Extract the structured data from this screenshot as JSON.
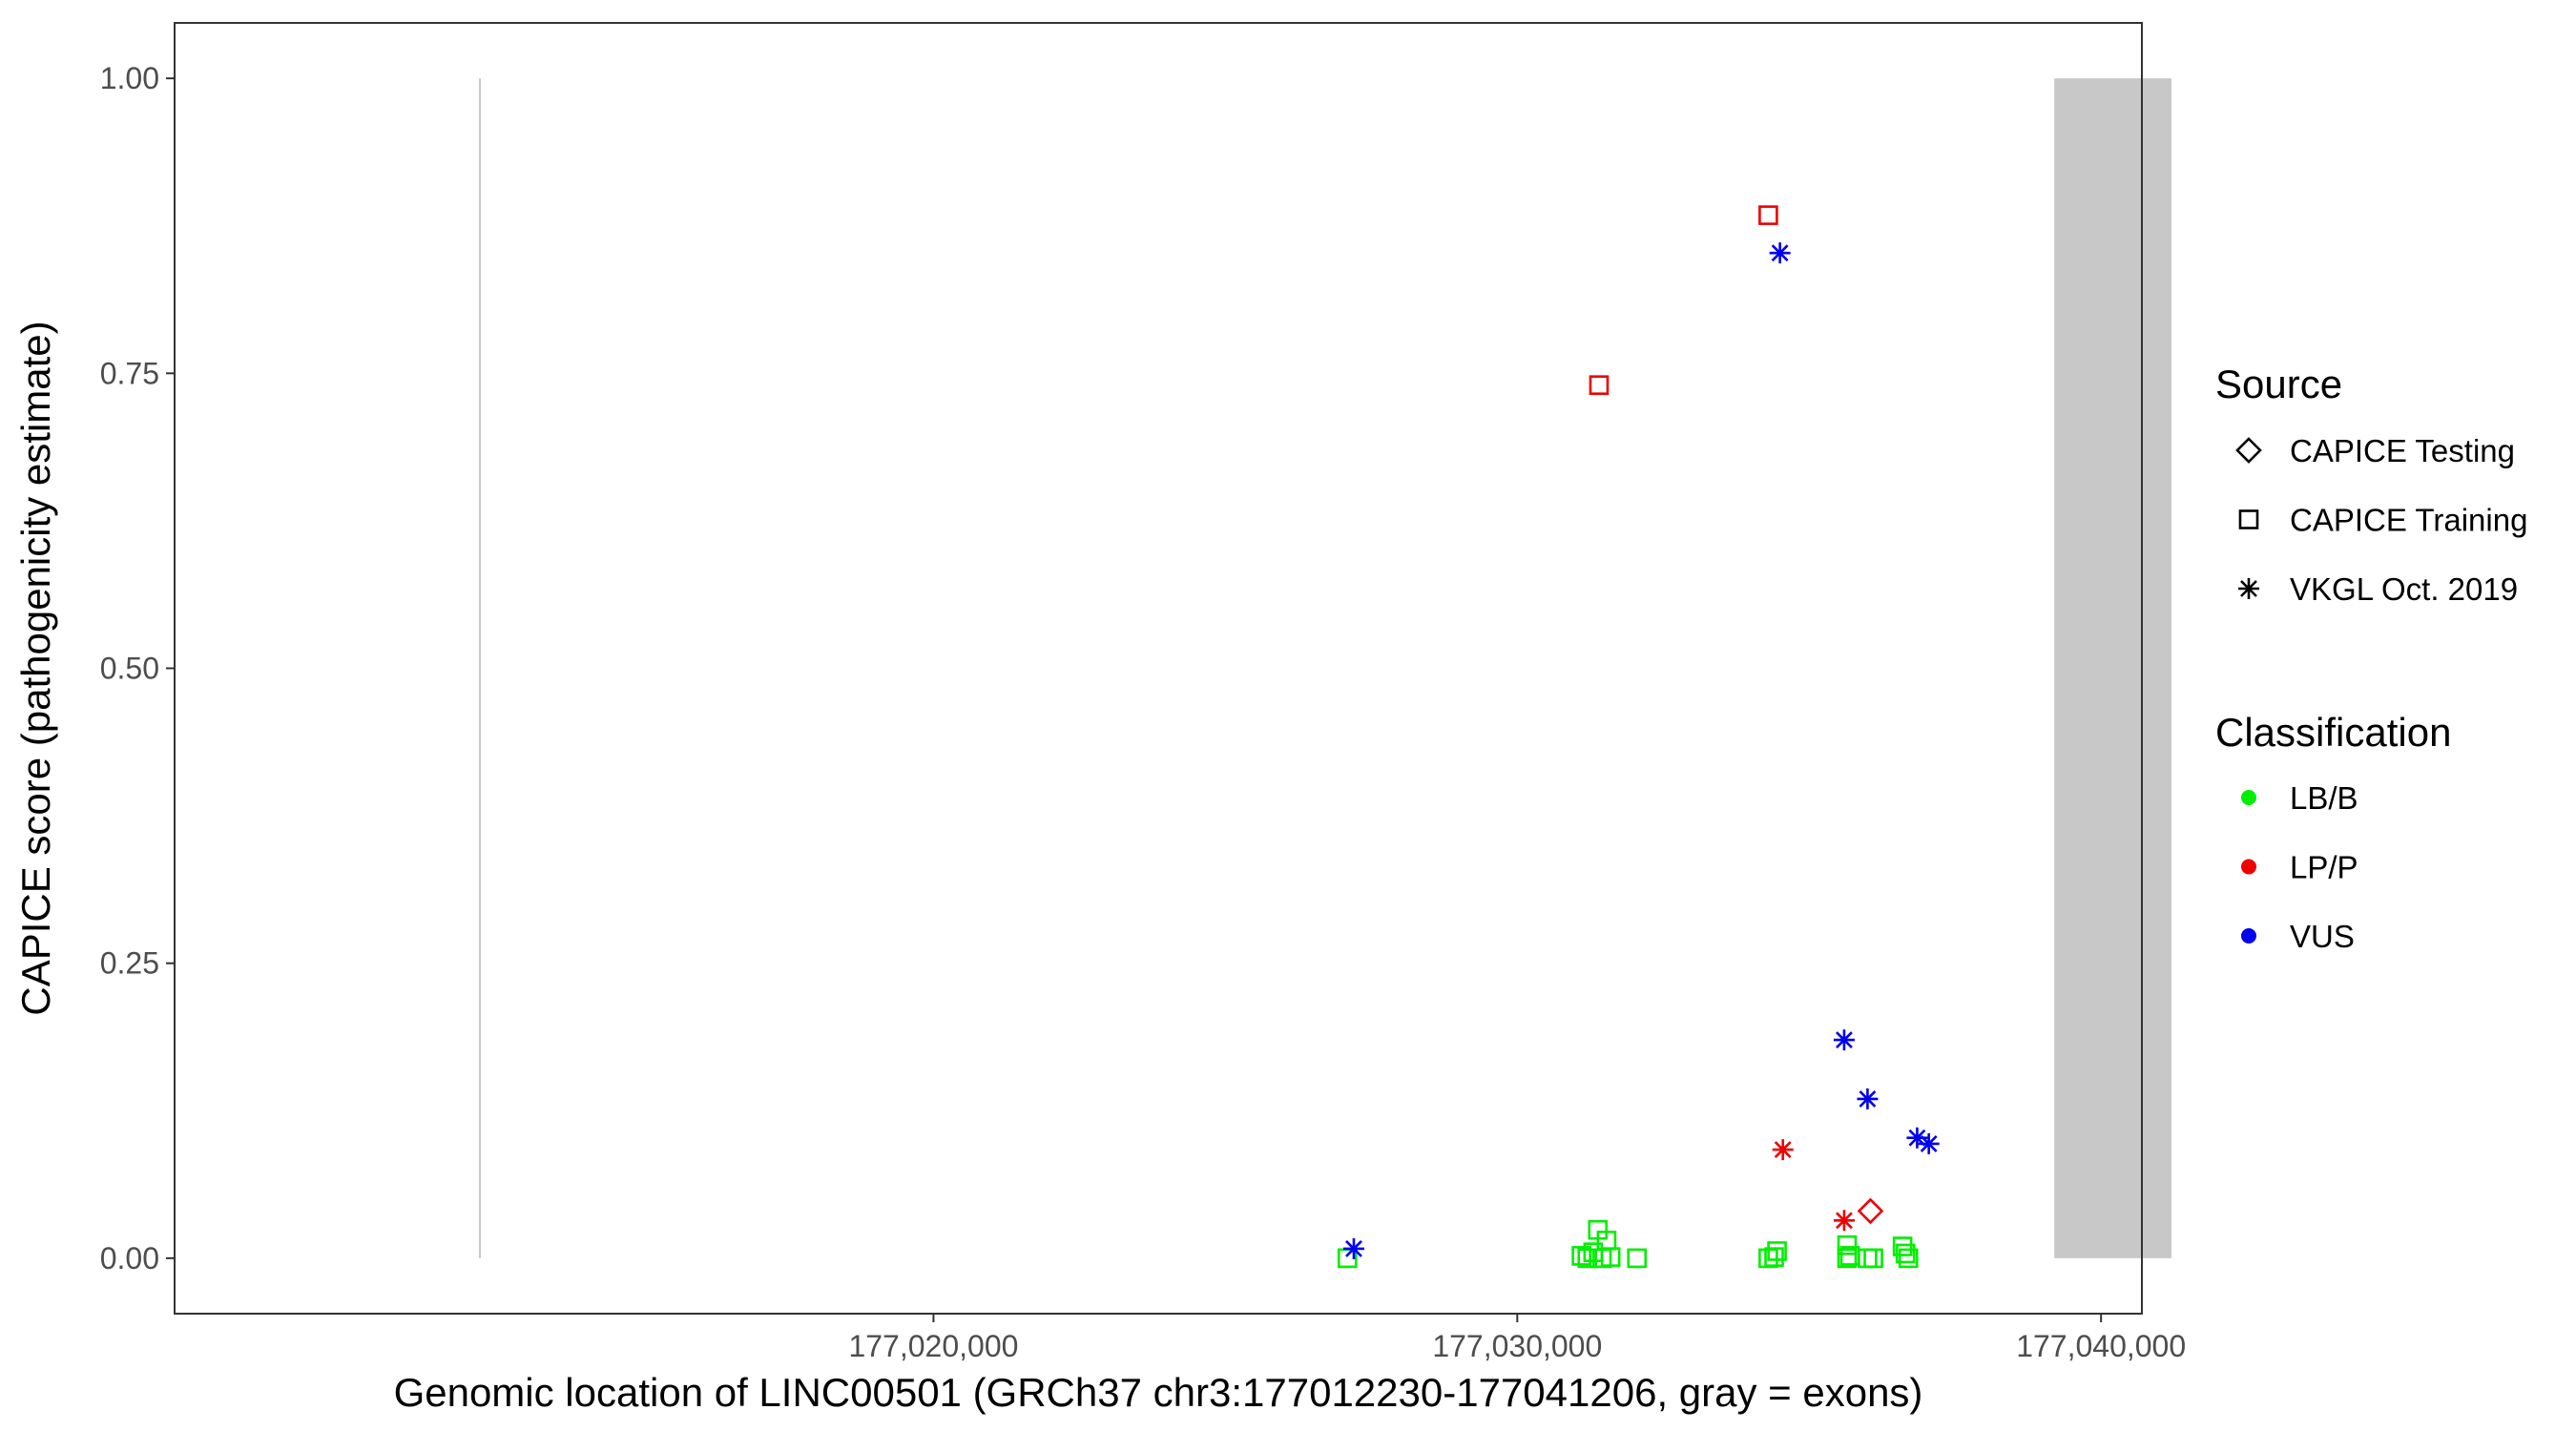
{
  "chart_data": {
    "type": "scatter",
    "title": "",
    "xlabel": "Genomic location of LINC00501 (GRCh37 chr3:177012230-177041206, gray = exons)",
    "ylabel": "CAPICE score (pathogenicity estimate)",
    "xlim": [
      177007000,
      177040700
    ],
    "ylim": [
      -0.047,
      1.047
    ],
    "x_ticks": [
      177020000,
      177030000,
      177040000
    ],
    "x_tick_labels": [
      "177,020,000",
      "177,030,000",
      "177,040,000"
    ],
    "y_ticks": [
      0,
      0.25,
      0.5,
      0.75,
      1.0
    ],
    "y_tick_labels": [
      "0.00",
      "0.25",
      "0.50",
      "0.75",
      "1.00"
    ],
    "grid": false,
    "gene_span": [
      177012230,
      177041206
    ],
    "exons": [
      {
        "start": 177012230,
        "end": 177012230
      },
      {
        "start": 177039200,
        "end": 177041206
      }
    ],
    "exon_color": "#c8c8c8",
    "legend": {
      "position": "right",
      "source_title": "Source",
      "source_items": [
        {
          "label": "CAPICE Testing",
          "shape": "diamond"
        },
        {
          "label": "CAPICE Training",
          "shape": "square"
        },
        {
          "label": "VKGL Oct. 2019",
          "shape": "asterisk"
        }
      ],
      "class_title": "Classification",
      "class_items": [
        {
          "label": "LB/B",
          "color": "#00ee00"
        },
        {
          "label": "LP/P",
          "color": "#ee0000"
        },
        {
          "label": "VUS",
          "color": "#0000ee"
        }
      ]
    },
    "points": [
      {
        "x": 177027090,
        "y": 0.0,
        "source": "CAPICE Training",
        "class": "LB/B"
      },
      {
        "x": 177027200,
        "y": 0.008,
        "source": "VKGL Oct. 2019",
        "class": "VUS"
      },
      {
        "x": 177031100,
        "y": 0.002,
        "source": "CAPICE Training",
        "class": "LB/B"
      },
      {
        "x": 177031200,
        "y": 0.0,
        "source": "CAPICE Training",
        "class": "LB/B"
      },
      {
        "x": 177031300,
        "y": 0.005,
        "source": "CAPICE Training",
        "class": "LB/B"
      },
      {
        "x": 177031380,
        "y": 0.024,
        "source": "CAPICE Training",
        "class": "LB/B"
      },
      {
        "x": 177031400,
        "y": 0.74,
        "source": "CAPICE Training",
        "class": "LP/P"
      },
      {
        "x": 177031450,
        "y": 0.0,
        "source": "CAPICE Training",
        "class": "LB/B"
      },
      {
        "x": 177031530,
        "y": 0.015,
        "source": "CAPICE Training",
        "class": "LB/B"
      },
      {
        "x": 177031600,
        "y": 0.001,
        "source": "CAPICE Training",
        "class": "LB/B"
      },
      {
        "x": 177032050,
        "y": 0.0,
        "source": "CAPICE Training",
        "class": "LB/B"
      },
      {
        "x": 177034300,
        "y": 0.884,
        "source": "CAPICE Training",
        "class": "LP/P"
      },
      {
        "x": 177034300,
        "y": 0.0,
        "source": "CAPICE Training",
        "class": "LB/B"
      },
      {
        "x": 177034400,
        "y": 0.001,
        "source": "CAPICE Training",
        "class": "LB/B"
      },
      {
        "x": 177034450,
        "y": 0.006,
        "source": "CAPICE Training",
        "class": "LB/B"
      },
      {
        "x": 177034500,
        "y": 0.852,
        "source": "VKGL Oct. 2019",
        "class": "VUS"
      },
      {
        "x": 177034550,
        "y": 0.092,
        "source": "VKGL Oct. 2019",
        "class": "LP/P"
      },
      {
        "x": 177035600,
        "y": 0.185,
        "source": "VKGL Oct. 2019",
        "class": "VUS"
      },
      {
        "x": 177035600,
        "y": 0.032,
        "source": "VKGL Oct. 2019",
        "class": "LP/P"
      },
      {
        "x": 177035650,
        "y": 0.011,
        "source": "CAPICE Training",
        "class": "LB/B"
      },
      {
        "x": 177035650,
        "y": 0.0,
        "source": "CAPICE Training",
        "class": "LB/B"
      },
      {
        "x": 177035700,
        "y": 0.002,
        "source": "CAPICE Training",
        "class": "LB/B"
      },
      {
        "x": 177036000,
        "y": 0.135,
        "source": "VKGL Oct. 2019",
        "class": "VUS"
      },
      {
        "x": 177036000,
        "y": 0.0,
        "source": "CAPICE Training",
        "class": "LB/B"
      },
      {
        "x": 177036050,
        "y": 0.04,
        "source": "CAPICE Testing",
        "class": "LP/P"
      },
      {
        "x": 177036100,
        "y": 0.0,
        "source": "CAPICE Training",
        "class": "LB/B"
      },
      {
        "x": 177036600,
        "y": 0.01,
        "source": "CAPICE Training",
        "class": "LB/B"
      },
      {
        "x": 177036650,
        "y": 0.004,
        "source": "CAPICE Training",
        "class": "LB/B"
      },
      {
        "x": 177036700,
        "y": 0.0,
        "source": "CAPICE Training",
        "class": "LB/B"
      },
      {
        "x": 177036850,
        "y": 0.102,
        "source": "VKGL Oct. 2019",
        "class": "VUS"
      },
      {
        "x": 177037050,
        "y": 0.097,
        "source": "VKGL Oct. 2019",
        "class": "VUS"
      }
    ]
  }
}
